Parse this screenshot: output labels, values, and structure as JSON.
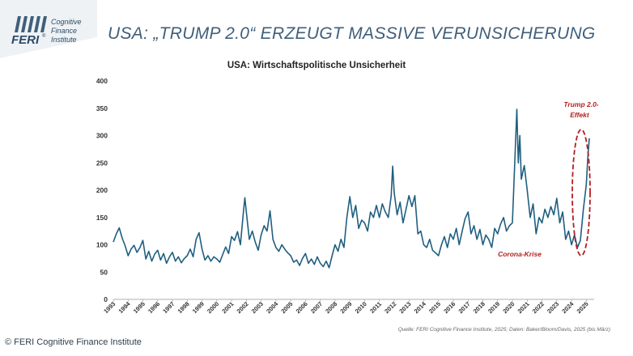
{
  "header": {
    "logo": {
      "mark": "FERI",
      "registered": "®",
      "line1": "Cognitive",
      "line2": "Finance",
      "line3": "Institute"
    },
    "slide_title": "USA: „TRUMP 2.0“ ERZEUGT MASSIVE VERUNSICHERUNG"
  },
  "chart_data": {
    "type": "line",
    "title": "USA: Wirtschaftspolitische Unsicherheit",
    "ylim": [
      0,
      400
    ],
    "y_ticks": [
      0,
      50,
      100,
      150,
      200,
      250,
      300,
      350,
      400
    ],
    "x_tick_labels": [
      "1993",
      "1994",
      "1995",
      "1996",
      "1997",
      "1998",
      "1999",
      "2000",
      "2001",
      "2002",
      "2003",
      "2004",
      "2005",
      "2006",
      "2007",
      "2008",
      "2009",
      "2010",
      "2011",
      "2012",
      "2013",
      "2014",
      "2015",
      "2016",
      "2017",
      "2018",
      "2019",
      "2020",
      "2021",
      "2022",
      "2023",
      "2024",
      "2025"
    ],
    "x_range": [
      1993.0,
      2025.2
    ],
    "grid": false,
    "line_color": "#1f5f80",
    "series": [
      {
        "points": [
          [
            1993.0,
            105
          ],
          [
            1993.2,
            120
          ],
          [
            1993.4,
            131
          ],
          [
            1993.6,
            112
          ],
          [
            1993.8,
            98
          ],
          [
            1994.0,
            80
          ],
          [
            1994.2,
            92
          ],
          [
            1994.4,
            99
          ],
          [
            1994.6,
            86
          ],
          [
            1994.8,
            95
          ],
          [
            1995.0,
            108
          ],
          [
            1995.2,
            74
          ],
          [
            1995.4,
            88
          ],
          [
            1995.6,
            70
          ],
          [
            1995.8,
            83
          ],
          [
            1996.0,
            90
          ],
          [
            1996.2,
            72
          ],
          [
            1996.4,
            84
          ],
          [
            1996.6,
            66
          ],
          [
            1996.8,
            78
          ],
          [
            1997.0,
            86
          ],
          [
            1997.2,
            70
          ],
          [
            1997.4,
            78
          ],
          [
            1997.6,
            67
          ],
          [
            1997.8,
            75
          ],
          [
            1998.0,
            80
          ],
          [
            1998.2,
            92
          ],
          [
            1998.4,
            78
          ],
          [
            1998.6,
            110
          ],
          [
            1998.8,
            122
          ],
          [
            1999.0,
            92
          ],
          [
            1999.2,
            72
          ],
          [
            1999.4,
            80
          ],
          [
            1999.6,
            70
          ],
          [
            1999.8,
            78
          ],
          [
            2000.0,
            74
          ],
          [
            2000.2,
            68
          ],
          [
            2000.4,
            82
          ],
          [
            2000.6,
            96
          ],
          [
            2000.8,
            84
          ],
          [
            2001.0,
            115
          ],
          [
            2001.2,
            108
          ],
          [
            2001.4,
            124
          ],
          [
            2001.6,
            100
          ],
          [
            2001.8,
            160
          ],
          [
            2001.9,
            186
          ],
          [
            2002.0,
            160
          ],
          [
            2002.2,
            110
          ],
          [
            2002.4,
            125
          ],
          [
            2002.6,
            105
          ],
          [
            2002.8,
            90
          ],
          [
            2003.0,
            118
          ],
          [
            2003.2,
            135
          ],
          [
            2003.4,
            125
          ],
          [
            2003.6,
            162
          ],
          [
            2003.8,
            110
          ],
          [
            2004.0,
            95
          ],
          [
            2004.2,
            88
          ],
          [
            2004.4,
            100
          ],
          [
            2004.6,
            92
          ],
          [
            2004.8,
            85
          ],
          [
            2005.0,
            80
          ],
          [
            2005.2,
            68
          ],
          [
            2005.4,
            72
          ],
          [
            2005.6,
            62
          ],
          [
            2005.8,
            75
          ],
          [
            2006.0,
            84
          ],
          [
            2006.2,
            66
          ],
          [
            2006.4,
            74
          ],
          [
            2006.6,
            64
          ],
          [
            2006.8,
            78
          ],
          [
            2007.0,
            66
          ],
          [
            2007.2,
            60
          ],
          [
            2007.4,
            70
          ],
          [
            2007.6,
            58
          ],
          [
            2007.8,
            80
          ],
          [
            2008.0,
            100
          ],
          [
            2008.2,
            88
          ],
          [
            2008.4,
            110
          ],
          [
            2008.6,
            95
          ],
          [
            2008.8,
            150
          ],
          [
            2009.0,
            188
          ],
          [
            2009.2,
            150
          ],
          [
            2009.4,
            172
          ],
          [
            2009.6,
            130
          ],
          [
            2009.8,
            145
          ],
          [
            2010.0,
            140
          ],
          [
            2010.2,
            125
          ],
          [
            2010.4,
            160
          ],
          [
            2010.6,
            150
          ],
          [
            2010.8,
            172
          ],
          [
            2011.0,
            150
          ],
          [
            2011.2,
            175
          ],
          [
            2011.4,
            160
          ],
          [
            2011.6,
            150
          ],
          [
            2011.8,
            190
          ],
          [
            2011.9,
            244
          ],
          [
            2012.0,
            195
          ],
          [
            2012.2,
            155
          ],
          [
            2012.4,
            178
          ],
          [
            2012.6,
            140
          ],
          [
            2012.8,
            165
          ],
          [
            2013.0,
            190
          ],
          [
            2013.2,
            170
          ],
          [
            2013.4,
            190
          ],
          [
            2013.6,
            120
          ],
          [
            2013.8,
            125
          ],
          [
            2014.0,
            100
          ],
          [
            2014.2,
            95
          ],
          [
            2014.4,
            110
          ],
          [
            2014.6,
            90
          ],
          [
            2014.8,
            85
          ],
          [
            2015.0,
            80
          ],
          [
            2015.2,
            100
          ],
          [
            2015.4,
            115
          ],
          [
            2015.6,
            95
          ],
          [
            2015.8,
            120
          ],
          [
            2016.0,
            110
          ],
          [
            2016.2,
            130
          ],
          [
            2016.4,
            100
          ],
          [
            2016.6,
            125
          ],
          [
            2016.8,
            148
          ],
          [
            2017.0,
            160
          ],
          [
            2017.2,
            120
          ],
          [
            2017.4,
            135
          ],
          [
            2017.6,
            110
          ],
          [
            2017.8,
            128
          ],
          [
            2018.0,
            100
          ],
          [
            2018.2,
            118
          ],
          [
            2018.4,
            110
          ],
          [
            2018.6,
            95
          ],
          [
            2018.8,
            130
          ],
          [
            2019.0,
            120
          ],
          [
            2019.2,
            138
          ],
          [
            2019.4,
            150
          ],
          [
            2019.6,
            125
          ],
          [
            2019.8,
            135
          ],
          [
            2020.0,
            140
          ],
          [
            2020.2,
            280
          ],
          [
            2020.3,
            348
          ],
          [
            2020.4,
            250
          ],
          [
            2020.5,
            300
          ],
          [
            2020.6,
            220
          ],
          [
            2020.8,
            245
          ],
          [
            2021.0,
            200
          ],
          [
            2021.2,
            150
          ],
          [
            2021.4,
            175
          ],
          [
            2021.6,
            120
          ],
          [
            2021.8,
            150
          ],
          [
            2022.0,
            140
          ],
          [
            2022.2,
            165
          ],
          [
            2022.4,
            150
          ],
          [
            2022.6,
            170
          ],
          [
            2022.8,
            155
          ],
          [
            2023.0,
            185
          ],
          [
            2023.2,
            140
          ],
          [
            2023.4,
            160
          ],
          [
            2023.6,
            110
          ],
          [
            2023.8,
            125
          ],
          [
            2024.0,
            100
          ],
          [
            2024.2,
            118
          ],
          [
            2024.4,
            95
          ],
          [
            2024.6,
            108
          ],
          [
            2024.8,
            165
          ],
          [
            2025.0,
            210
          ],
          [
            2025.1,
            260
          ],
          [
            2025.2,
            295
          ]
        ]
      }
    ],
    "annotations": {
      "trump": {
        "line1": "Trump 2.0-",
        "line2": "Effekt",
        "color": "#b41e1e"
      },
      "corona": {
        "text": "Corona-Krise",
        "color": "#b41e1e"
      }
    }
  },
  "footer": {
    "source": "Quelle: FERI Cognitive Finance Institute, 2025; Daten: Baker/Bloom/Davis, 2025 (bis März)",
    "copyright": "© FERI Cognitive Finance Institute"
  }
}
